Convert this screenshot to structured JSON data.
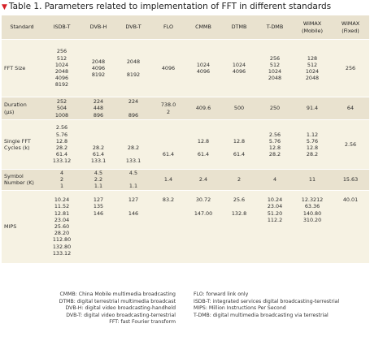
{
  "title": {
    "marker": "▼",
    "text": "Table 1. Parameters related to implementation of FFT in different standards"
  },
  "table": {
    "headers": [
      "Standard",
      "ISDB-T",
      "DVB-H",
      "DVB-T",
      "FLO",
      "CMMB",
      "DTMB",
      "T-DMB",
      "WiMAX\n(Mobile)",
      "WiMAX\n(Fixed)"
    ],
    "rows": [
      {
        "label": "FFT Size",
        "cells": [
          [
            "256",
            "512",
            "1024",
            "2048",
            "4096",
            "8192"
          ],
          [
            "2048",
            "4096",
            "8192"
          ],
          [
            "2048",
            "",
            "8192"
          ],
          [
            "4096"
          ],
          [
            "1024",
            "4096"
          ],
          [
            "1024",
            "4096"
          ],
          [
            "256",
            "512",
            "1024",
            "2048"
          ],
          [
            "128",
            "512",
            "1024",
            "2048"
          ],
          [
            "256"
          ]
        ]
      },
      {
        "label": "Duration\n(µs)",
        "cells": [
          [
            "252",
            "504",
            "1008"
          ],
          [
            "224",
            "448",
            "896"
          ],
          [
            "224",
            "",
            "896"
          ],
          [
            "738.0",
            "2"
          ],
          [
            "409.6"
          ],
          [
            "500"
          ],
          [
            "250"
          ],
          [
            "91.4"
          ],
          [
            "64"
          ]
        ]
      },
      {
        "label": "Single FFT\nCycles (k)",
        "cells": [
          [
            "2.56",
            "5.76",
            "12.8",
            "28.2",
            "61.4",
            "133.12"
          ],
          [
            "",
            "",
            "",
            "28.2",
            "61.4",
            "133.1"
          ],
          [
            "",
            "",
            "",
            "28.2",
            "",
            "133.1"
          ],
          [
            "",
            "",
            "",
            "",
            "61.4",
            ""
          ],
          [
            "",
            "",
            "12.8",
            "",
            "61.4",
            ""
          ],
          [
            "",
            "",
            "12.8",
            "",
            "61.4",
            ""
          ],
          [
            "2.56",
            "5.76",
            "12.8",
            "28.2"
          ],
          [
            "1.12",
            "5.76",
            "12.8",
            "28.2"
          ],
          [
            "2.56"
          ]
        ]
      },
      {
        "label": "Symbol\nNumber (K)",
        "cells": [
          [
            "4",
            "2",
            "1"
          ],
          [
            "4.5",
            "2.2",
            "1.1"
          ],
          [
            "4.5",
            "",
            "1.1"
          ],
          [
            "1.4"
          ],
          [
            "2.4"
          ],
          [
            "2"
          ],
          [
            "4"
          ],
          [
            "11"
          ],
          [
            "15.63"
          ]
        ]
      },
      {
        "label": "MIPS",
        "cells": [
          [
            "10.24",
            "11.52",
            "12.81",
            "23.04",
            "25.60",
            "28.20",
            "112.80",
            "132.80",
            "133.12"
          ],
          [
            "127",
            "135",
            "146",
            "",
            "",
            "",
            "",
            "",
            ""
          ],
          [
            "127",
            "",
            "146",
            "",
            "",
            "",
            "",
            "",
            ""
          ],
          [
            "83.2",
            "",
            "",
            "",
            "",
            "",
            "",
            "",
            ""
          ],
          [
            "30.72",
            "",
            "147.00",
            "",
            "",
            "",
            "",
            "",
            ""
          ],
          [
            "25.6",
            "",
            "132.8",
            "",
            "",
            "",
            "",
            "",
            ""
          ],
          [
            "10.24",
            "23.04",
            "51.20",
            "112.2",
            "",
            "",
            "",
            "",
            ""
          ],
          [
            "12.3212",
            "63.36",
            "140.80",
            "310.20",
            "",
            "",
            "",
            "",
            ""
          ],
          [
            "40.01",
            "",
            "",
            "",
            "",
            "",
            "",
            "",
            ""
          ]
        ]
      }
    ]
  },
  "notes": [
    {
      "left": "CMMB: China Mobile multimedia broadcasting",
      "right": "FLO: forward link only"
    },
    {
      "left": "DTMB: digital terrestrial multimedia broadcast",
      "right": "ISDB-T: integrated services digital broadcasting-terrestrial"
    },
    {
      "left": "DVB-H: digital video broadcasting-handheld",
      "right": "MIPS: Million Instructions Per Second"
    },
    {
      "left": "DVB-T: digital video broadcasting-terrestrial",
      "right": "T-DMB: digital multimedia broadcasting via terrestrial"
    },
    {
      "left": "FFT: fast Fourier transform",
      "right": ""
    }
  ]
}
